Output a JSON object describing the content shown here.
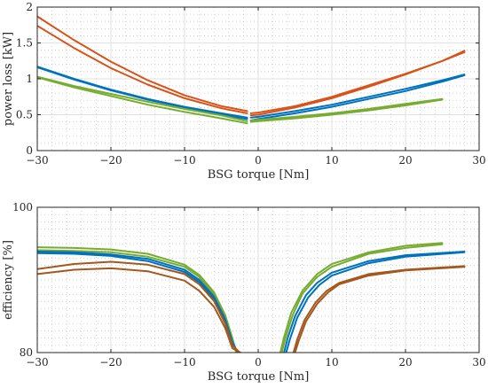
{
  "chart_data": [
    {
      "type": "line",
      "title": "",
      "xlabel": "BSG torque [Nm]",
      "ylabel": "power loss [kW]",
      "xlim": [
        -30,
        30
      ],
      "ylim": [
        0,
        2
      ],
      "xticks": [
        -30,
        -20,
        -10,
        0,
        10,
        20,
        30
      ],
      "xtick_labels": [
        "−30",
        "−20",
        "−10",
        "0",
        "10",
        "20",
        "30"
      ],
      "yticks": [
        0,
        0.5,
        1,
        1.5,
        2
      ],
      "ytick_labels": [
        "0",
        "0.5",
        "1",
        "1.5",
        "2"
      ],
      "grid": "major and minor",
      "legend": "none",
      "series": [
        {
          "color": "#D95319",
          "segments": [
            {
              "x": [
                -30,
                -25,
                -20,
                -15,
                -10,
                -5,
                -1.5
              ],
              "y": [
                1.87,
                1.54,
                1.24,
                0.98,
                0.77,
                0.62,
                0.55
              ]
            },
            {
              "x": [
                -1,
                0,
                5,
                10,
                15,
                20,
                25,
                28
              ],
              "y": [
                0.52,
                0.53,
                0.62,
                0.75,
                0.91,
                1.07,
                1.25,
                1.37
              ]
            }
          ]
        },
        {
          "color": "#D95319",
          "segments": [
            {
              "x": [
                -30,
                -25,
                -20,
                -15,
                -10,
                -5,
                -1.5
              ],
              "y": [
                1.74,
                1.43,
                1.15,
                0.92,
                0.73,
                0.59,
                0.52
              ]
            },
            {
              "x": [
                -1,
                0,
                5,
                10,
                15,
                20,
                25,
                28
              ],
              "y": [
                0.49,
                0.5,
                0.6,
                0.73,
                0.89,
                1.06,
                1.25,
                1.39
              ]
            }
          ]
        },
        {
          "color": "#0072BD",
          "segments": [
            {
              "x": [
                -30,
                -25,
                -20,
                -15,
                -10,
                -5,
                -1.5
              ],
              "y": [
                1.17,
                1.0,
                0.85,
                0.72,
                0.61,
                0.52,
                0.46
              ]
            },
            {
              "x": [
                -1,
                0,
                5,
                10,
                15,
                20,
                25,
                28
              ],
              "y": [
                0.46,
                0.47,
                0.55,
                0.64,
                0.75,
                0.86,
                0.98,
                1.06
              ]
            }
          ]
        },
        {
          "color": "#0072BD",
          "segments": [
            {
              "x": [
                -30,
                -25,
                -20,
                -15,
                -10,
                -5,
                -1.5
              ],
              "y": [
                1.16,
                0.99,
                0.84,
                0.71,
                0.6,
                0.5,
                0.44
              ]
            },
            {
              "x": [
                -1,
                0,
                5,
                10,
                15,
                20,
                25,
                28
              ],
              "y": [
                0.42,
                0.44,
                0.52,
                0.61,
                0.72,
                0.83,
                0.96,
                1.05
              ]
            }
          ]
        },
        {
          "color": "#77AC30",
          "segments": [
            {
              "x": [
                -30,
                -25,
                -20,
                -15,
                -10,
                -5,
                -1.5
              ],
              "y": [
                1.03,
                0.9,
                0.79,
                0.68,
                0.58,
                0.49,
                0.41
              ]
            },
            {
              "x": [
                -1,
                0,
                5,
                10,
                15,
                20,
                25
              ],
              "y": [
                0.42,
                0.43,
                0.47,
                0.52,
                0.58,
                0.65,
                0.72
              ]
            }
          ]
        },
        {
          "color": "#77AC30",
          "segments": [
            {
              "x": [
                -30,
                -25,
                -20,
                -15,
                -10,
                -5,
                -1.5
              ],
              "y": [
                1.02,
                0.88,
                0.76,
                0.64,
                0.54,
                0.45,
                0.38
              ]
            },
            {
              "x": [
                -1,
                0,
                5,
                10,
                15,
                20,
                25
              ],
              "y": [
                0.4,
                0.41,
                0.45,
                0.5,
                0.56,
                0.63,
                0.71
              ]
            }
          ]
        }
      ]
    },
    {
      "type": "line",
      "title": "",
      "xlabel": "BSG torque [Nm]",
      "ylabel": "efficiency  [%]",
      "xlim": [
        -30,
        30
      ],
      "ylim": [
        80,
        100
      ],
      "xticks": [
        -30,
        -20,
        -10,
        0,
        10,
        20,
        30
      ],
      "xtick_labels": [
        "−30",
        "−20",
        "−10",
        "0",
        "10",
        "20",
        "30"
      ],
      "yticks": [
        80,
        100
      ],
      "ytick_labels": [
        "80",
        "100"
      ],
      "grid": "major and minor",
      "legend": "none",
      "series": [
        {
          "color": "#77AC30",
          "segments": [
            {
              "x": [
                -30,
                -25,
                -20,
                -15,
                -10,
                -8,
                -6,
                -4.5,
                -3.5,
                -3
              ],
              "y": [
                94.5,
                94.4,
                94.2,
                93.6,
                92.1,
                90.7,
                88.3,
                85.2,
                82.0,
                80
              ]
            },
            {
              "x": [
                3,
                3.5,
                4.5,
                6,
                8,
                10,
                15,
                20,
                25
              ],
              "y": [
                80,
                82.1,
                85.5,
                88.5,
                90.8,
                92.2,
                93.8,
                94.7,
                95.1
              ]
            }
          ]
        },
        {
          "color": "#77AC30",
          "segments": [
            {
              "x": [
                -30,
                -25,
                -20,
                -15,
                -10,
                -8,
                -6,
                -4.5,
                -3.5,
                -2.9
              ],
              "y": [
                94.1,
                94.0,
                93.8,
                93.2,
                91.8,
                90.4,
                88.0,
                84.9,
                81.8,
                80
              ]
            },
            {
              "x": [
                3.2,
                3.7,
                4.7,
                6,
                8,
                10,
                15,
                20,
                25
              ],
              "y": [
                80,
                82.0,
                85.2,
                88.1,
                90.4,
                91.8,
                93.6,
                94.4,
                94.9
              ]
            }
          ]
        },
        {
          "color": "#0072BD",
          "segments": [
            {
              "x": [
                -30,
                -25,
                -20,
                -15,
                -10,
                -8,
                -6,
                -4.5,
                -3.5,
                -2.8
              ],
              "y": [
                93.9,
                93.8,
                93.5,
                92.9,
                91.4,
                90.0,
                87.7,
                84.6,
                81.5,
                80
              ]
            },
            {
              "x": [
                3.5,
                4,
                5,
                6.5,
                8,
                10,
                15,
                20,
                28
              ],
              "y": [
                80,
                82.0,
                85.0,
                87.9,
                89.6,
                91.0,
                92.6,
                93.4,
                93.9
              ]
            }
          ]
        },
        {
          "color": "#0072BD",
          "segments": [
            {
              "x": [
                -30,
                -25,
                -20,
                -15,
                -10,
                -8,
                -6,
                -4.5,
                -3.5,
                -2.7
              ],
              "y": [
                93.7,
                93.6,
                93.3,
                92.6,
                91.1,
                89.7,
                87.4,
                84.3,
                81.2,
                80
              ]
            },
            {
              "x": [
                3.8,
                4.3,
                5.3,
                6.8,
                8.3,
                10,
                15,
                20,
                28
              ],
              "y": [
                80,
                81.8,
                84.8,
                87.6,
                89.3,
                90.6,
                92.3,
                93.2,
                93.8
              ]
            }
          ]
        },
        {
          "color": "#A2581E",
          "segments": [
            {
              "x": [
                -30,
                -25,
                -20,
                -15,
                -10,
                -8,
                -6,
                -4.5,
                -3.5,
                -2.5
              ],
              "y": [
                91.5,
                92.2,
                92.5,
                92.1,
                90.8,
                89.4,
                87.1,
                84.0,
                81.0,
                80
              ]
            },
            {
              "x": [
                4.8,
                5.3,
                6.3,
                7.8,
                9.3,
                11,
                15,
                20,
                28
              ],
              "y": [
                80,
                81.8,
                84.5,
                86.9,
                88.5,
                89.6,
                90.8,
                91.4,
                91.9
              ]
            }
          ]
        },
        {
          "color": "#A2581E",
          "segments": [
            {
              "x": [
                -30,
                -25,
                -20,
                -15,
                -10,
                -8,
                -6,
                -4.5,
                -3.5,
                -2.4
              ],
              "y": [
                90.8,
                91.4,
                91.6,
                91.2,
                89.9,
                88.5,
                86.3,
                83.4,
                80.6,
                80
              ]
            },
            {
              "x": [
                5.0,
                5.5,
                6.5,
                8.0,
                9.5,
                11,
                15,
                20,
                28
              ],
              "y": [
                80,
                81.6,
                84.3,
                86.7,
                88.3,
                89.4,
                90.6,
                91.3,
                91.8
              ]
            }
          ]
        }
      ]
    }
  ]
}
